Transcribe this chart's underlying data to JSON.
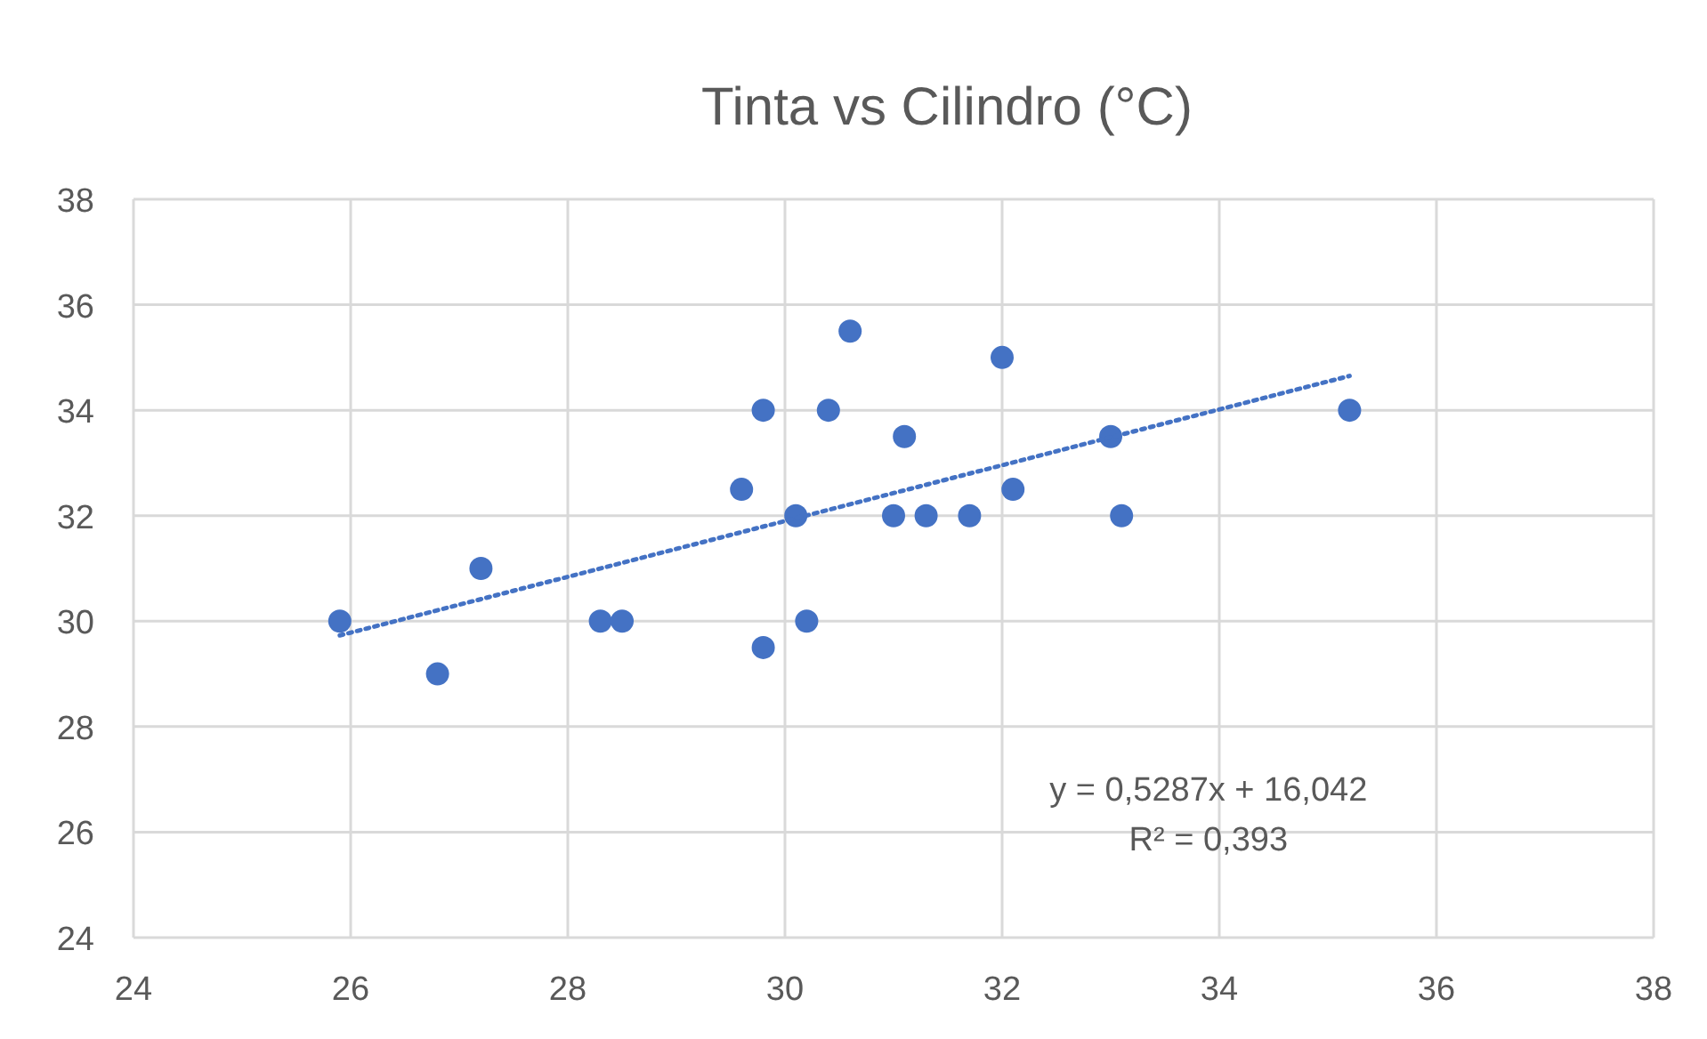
{
  "chart_data": {
    "type": "scatter",
    "title": "Tinta vs Cilindro (°C)",
    "series": [
      {
        "color": "#4472c4",
        "marker": "circle",
        "x": [
          25.9,
          26.8,
          27.2,
          28.3,
          28.5,
          29.6,
          29.8,
          29.8,
          30.1,
          30.2,
          30.4,
          30.6,
          31.0,
          31.1,
          31.3,
          31.7,
          32.0,
          32.1,
          33.0,
          33.1,
          35.2
        ],
        "values": [
          30,
          29,
          31,
          30,
          30,
          32.5,
          34,
          29.5,
          32,
          30,
          34,
          35.5,
          32,
          33.5,
          32,
          32,
          35,
          32.5,
          33.5,
          32,
          34
        ]
      },
      {
        "type": "line",
        "color": "#4472c4",
        "line_style": "dotted",
        "x": [
          25.9,
          35.2
        ],
        "values": [
          29.73,
          34.65
        ]
      }
    ],
    "xlim": [
      24,
      38
    ],
    "ylim": [
      24,
      38
    ],
    "xticks": [
      24,
      26,
      28,
      30,
      32,
      34,
      36,
      38
    ],
    "yticks": [
      24,
      26,
      28,
      30,
      32,
      34,
      36,
      38
    ],
    "grid": true,
    "annotations": [
      "y = 0,5287x + 16,042",
      "R² = 0,393"
    ]
  }
}
